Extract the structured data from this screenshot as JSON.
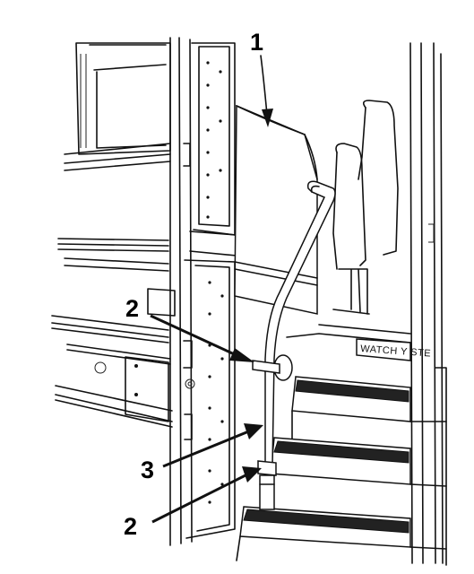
{
  "figure": {
    "description_labels": {
      "callout_1": "1",
      "callout_2_top": "2",
      "callout_3": "3",
      "callout_2_bottom": "2"
    },
    "step_sign_text": "WATCH Y    STE",
    "colors": {
      "line": "#111111",
      "background": "#ffffff"
    }
  }
}
